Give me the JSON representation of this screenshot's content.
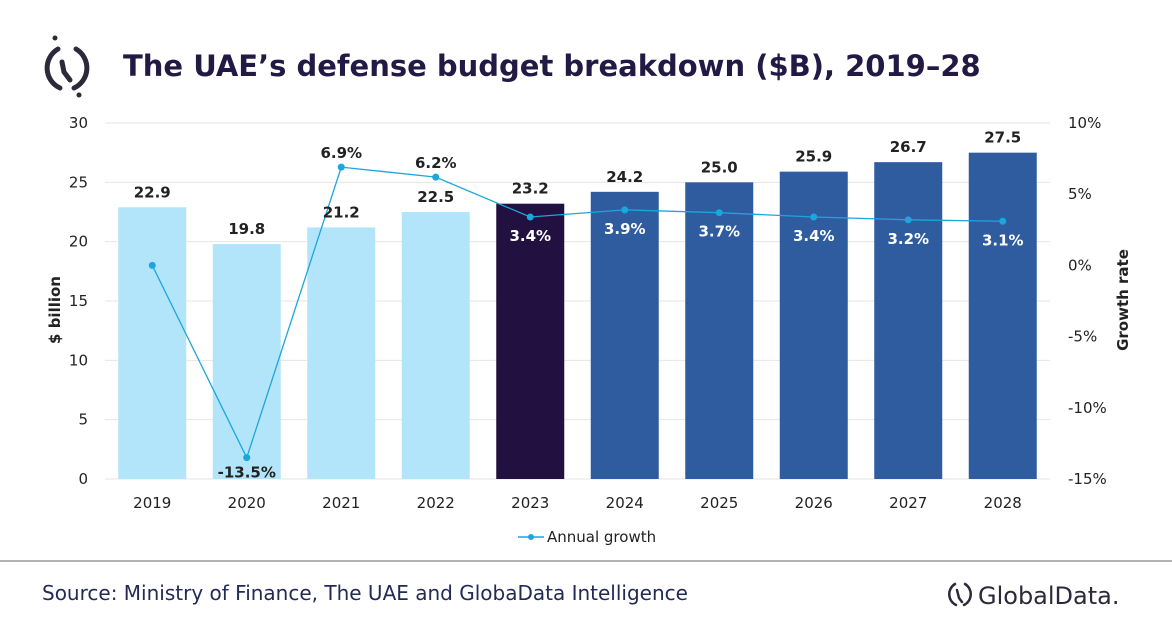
{
  "title": "The UAE’s defense budget breakdown ($B), 2019–28",
  "source": "Source: Ministry of Finance, The UAE and GlobaData Intelligence",
  "brand": "GlobalData.",
  "chart_data": {
    "type": "bar+line",
    "categories": [
      "2019",
      "2020",
      "2021",
      "2022",
      "2023",
      "2024",
      "2025",
      "2026",
      "2027",
      "2028"
    ],
    "bars": {
      "values": [
        22.9,
        19.8,
        21.2,
        22.5,
        23.2,
        24.2,
        25.0,
        25.9,
        26.7,
        27.5
      ],
      "labels": [
        "22.9",
        "19.8",
        "21.2",
        "22.5",
        "23.2",
        "24.2",
        "25.0",
        "25.9",
        "26.7",
        "27.5"
      ],
      "colors": [
        "#b3e5fa",
        "#b3e5fa",
        "#b3e5fa",
        "#b3e5fa",
        "#221040",
        "#2e5c9e",
        "#2e5c9e",
        "#2e5c9e",
        "#2e5c9e",
        "#2e5c9e"
      ]
    },
    "series": [
      {
        "name": "Annual growth",
        "values": [
          0,
          -13.5,
          6.9,
          6.2,
          3.4,
          3.9,
          3.7,
          3.4,
          3.2,
          3.1
        ],
        "labels": [
          "",
          "-13.5%",
          "6.9%",
          "6.2%",
          "3.4%",
          "3.9%",
          "3.7%",
          "3.4%",
          "3.2%",
          "3.1%"
        ],
        "color": "#1ba6dc"
      }
    ],
    "ylabel": "$ billion",
    "ylim": [
      0,
      30
    ],
    "yticks": [
      "0",
      "5",
      "10",
      "15",
      "20",
      "25",
      "30"
    ],
    "y2label": "Growth rate",
    "y2lim": [
      -15,
      10
    ],
    "y2ticks": [
      "-15%",
      "-10%",
      "-5%",
      "0%",
      "5%",
      "10%"
    ],
    "grid": true,
    "legend": "bottom"
  }
}
